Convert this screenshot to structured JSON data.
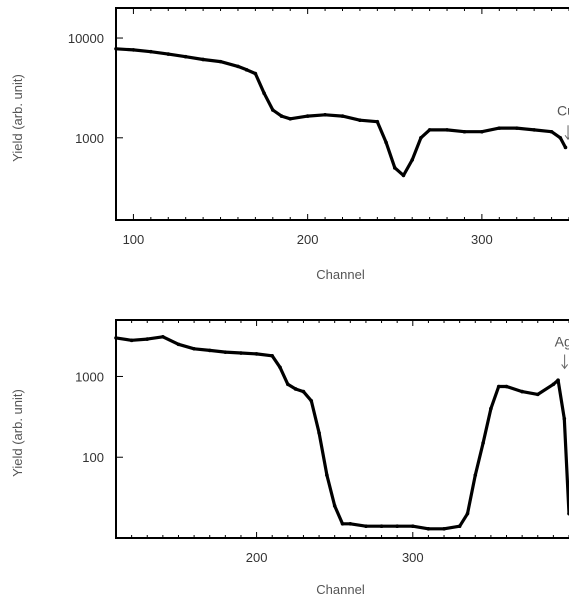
{
  "chart_data": [
    {
      "type": "line",
      "xlabel": "Channel",
      "ylabel": "Yield (arb. unit)",
      "xlim": [
        90,
        350
      ],
      "ylim": [
        150,
        20000
      ],
      "yscale": "log",
      "xticks": [
        100,
        200,
        300
      ],
      "yticks": [
        1000,
        10000
      ],
      "xtick_labels": [
        "100",
        "200",
        "300"
      ],
      "ytick_labels": [
        "1000",
        "10000"
      ],
      "annotation": {
        "text": "Cu",
        "x": 346,
        "y": 700
      },
      "series": [
        {
          "x": [
            90,
            100,
            110,
            120,
            130,
            140,
            150,
            160,
            165,
            170,
            175,
            180,
            185,
            190,
            200,
            210,
            220,
            230,
            240,
            245,
            250,
            255,
            260,
            265,
            270,
            280,
            290,
            300,
            310,
            320,
            330,
            340,
            345,
            348
          ],
          "values": [
            7800,
            7600,
            7300,
            6900,
            6500,
            6100,
            5800,
            5200,
            4800,
            4400,
            2800,
            1900,
            1650,
            1550,
            1650,
            1700,
            1650,
            1500,
            1450,
            900,
            500,
            420,
            600,
            1000,
            1200,
            1200,
            1150,
            1150,
            1250,
            1250,
            1200,
            1150,
            1000,
            800
          ]
        }
      ]
    },
    {
      "type": "line",
      "xlabel": "Channel",
      "ylabel": "Yield (arb. unit)",
      "xlim": [
        110,
        400
      ],
      "ylim": [
        10,
        5000
      ],
      "yscale": "log",
      "xticks": [
        200,
        300
      ],
      "yticks": [
        100,
        1000
      ],
      "xtick_labels": [
        "200",
        "300"
      ],
      "ytick_labels": [
        "100",
        "1000"
      ],
      "annotation": {
        "text": "Ag",
        "x": 394,
        "y": 1000
      },
      "series": [
        {
          "x": [
            110,
            120,
            130,
            140,
            150,
            160,
            170,
            180,
            190,
            200,
            210,
            215,
            220,
            225,
            230,
            235,
            240,
            245,
            250,
            255,
            260,
            270,
            280,
            290,
            300,
            310,
            320,
            330,
            335,
            340,
            345,
            350,
            355,
            360,
            370,
            380,
            390,
            393,
            397,
            400
          ],
          "values": [
            3000,
            2800,
            2900,
            3100,
            2500,
            2200,
            2100,
            2000,
            1950,
            1900,
            1800,
            1300,
            800,
            700,
            650,
            500,
            200,
            60,
            25,
            15,
            15,
            14,
            14,
            14,
            14,
            13,
            13,
            14,
            20,
            60,
            150,
            400,
            750,
            750,
            650,
            600,
            800,
            900,
            300,
            20
          ]
        }
      ]
    }
  ]
}
